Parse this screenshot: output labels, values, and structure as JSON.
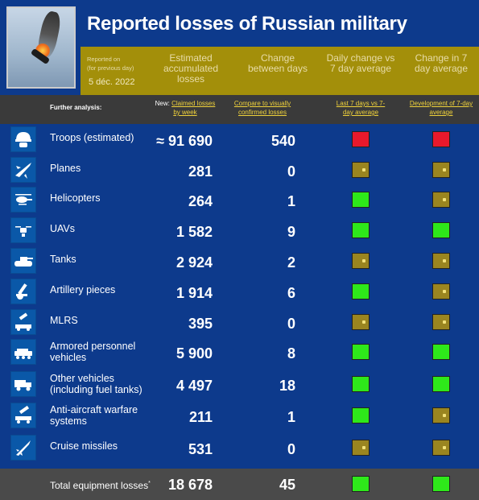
{
  "title": "Reported losses of Russian military",
  "header": {
    "reported_on_line1": "Reported on",
    "reported_on_line2": "(for previous day)",
    "date": "5 déc. 2022",
    "col_estimated": "Estimated accumulated losses",
    "col_change": "Change between days",
    "col_daily": "Daily change vs 7 day average",
    "col_7day": "Change in 7 day average"
  },
  "subheader": {
    "further_analysis": "Further analysis:",
    "new_prefix": "New:",
    "claimed_link": "Claimed losses by week",
    "compare_link": "Compare to visually confirmed losses",
    "last7_link": "Last 7 days vs 7-day average",
    "development_link": "Development of 7-day average"
  },
  "colors": {
    "red": "#e8192c",
    "green": "#2ee81a",
    "neutral": "#9a8520",
    "background": "#0d3a8c",
    "accent_bar": "#a38f0a"
  },
  "rows": [
    {
      "icon": "soldier-helmet-icon",
      "label": "Troops (estimated)",
      "value": "≈ 91 690",
      "change": "540",
      "daily": "red",
      "avg7": "red"
    },
    {
      "icon": "jet-plane-icon",
      "label": "Planes",
      "value": "281",
      "change": "0",
      "daily": "neutral",
      "avg7": "neutral"
    },
    {
      "icon": "helicopter-icon",
      "label": "Helicopters",
      "value": "264",
      "change": "1",
      "daily": "green",
      "avg7": "neutral"
    },
    {
      "icon": "drone-icon",
      "label": "UAVs",
      "value": "1 582",
      "change": "9",
      "daily": "green",
      "avg7": "green"
    },
    {
      "icon": "tank-icon",
      "label": "Tanks",
      "value": "2 924",
      "change": "2",
      "daily": "neutral",
      "avg7": "neutral"
    },
    {
      "icon": "artillery-icon",
      "label": "Artillery pieces",
      "value": "1 914",
      "change": "6",
      "daily": "green",
      "avg7": "neutral"
    },
    {
      "icon": "rocket-launcher-icon",
      "label": "MLRS",
      "value": "395",
      "change": "0",
      "daily": "neutral",
      "avg7": "neutral"
    },
    {
      "icon": "apc-icon",
      "label": "Armored personnel vehicles",
      "value": "5 900",
      "change": "8",
      "daily": "green",
      "avg7": "green"
    },
    {
      "icon": "truck-icon",
      "label": "Other vehicles (including fuel tanks)",
      "value": "4 497",
      "change": "18",
      "daily": "green",
      "avg7": "green"
    },
    {
      "icon": "anti-aircraft-icon",
      "label": "Anti-aircraft warfare systems",
      "value": "211",
      "change": "1",
      "daily": "green",
      "avg7": "neutral"
    },
    {
      "icon": "cruise-missile-icon",
      "label": "Cruise missiles",
      "value": "531",
      "change": "0",
      "daily": "neutral",
      "avg7": "neutral"
    }
  ],
  "total": {
    "label": "Total equipment losses",
    "footnote_mark": "*",
    "value": "18 678",
    "change": "45",
    "daily": "green",
    "avg7": "green"
  }
}
